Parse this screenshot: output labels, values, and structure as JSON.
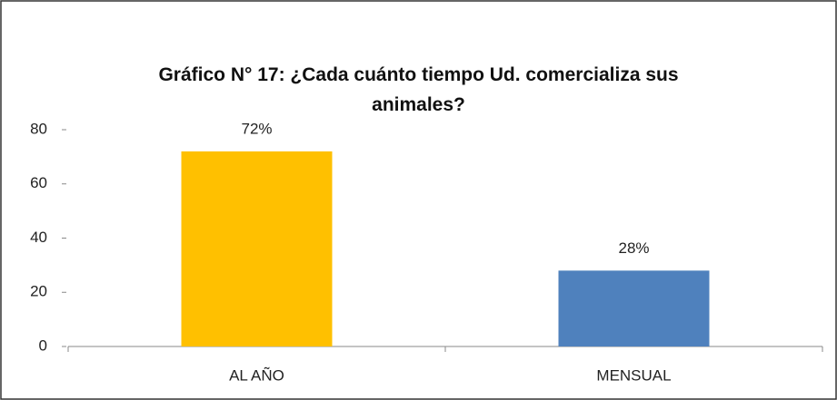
{
  "chart_data": {
    "type": "bar",
    "title": "Gráfico N° 17: ¿Cada cuánto tiempo Ud. comercializa sus animales?",
    "categories": [
      "AL AÑO",
      "MENSUAL"
    ],
    "values": [
      72,
      28
    ],
    "value_labels": [
      "72%",
      "28%"
    ],
    "colors": [
      "#ffc000",
      "#4f81bd"
    ],
    "ylim": [
      0,
      80
    ],
    "yticks": [
      0,
      20,
      40,
      60,
      80
    ],
    "grid": false
  }
}
